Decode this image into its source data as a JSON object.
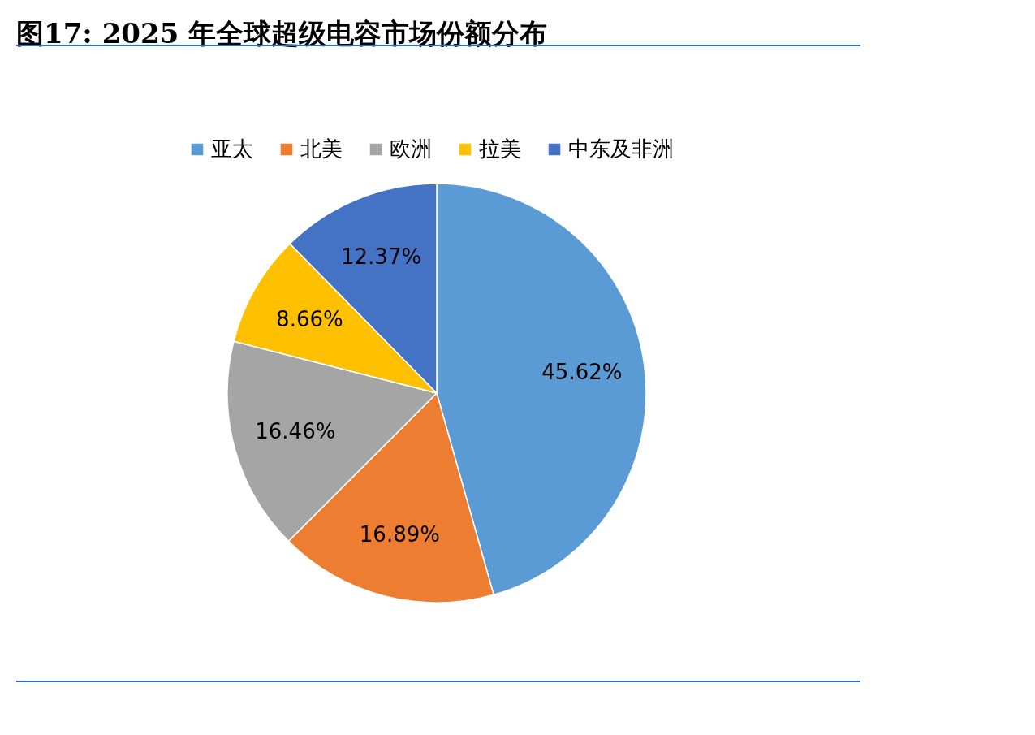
{
  "chart_data": {
    "type": "pie",
    "title": "图17: 2025 年全球超级电容市场份额分布",
    "categories": [
      "亚太",
      "北美",
      "欧洲",
      "拉美",
      "中东及非洲"
    ],
    "values": [
      45.62,
      16.89,
      16.46,
      8.66,
      12.37
    ],
    "colors": [
      "#5b9bd5",
      "#ed7d31",
      "#a5a5a5",
      "#ffc000",
      "#4472c4"
    ],
    "value_labels": [
      "45.62%",
      "16.89%",
      "16.46%",
      "8.66%",
      "12.37%"
    ],
    "legend": "top"
  }
}
